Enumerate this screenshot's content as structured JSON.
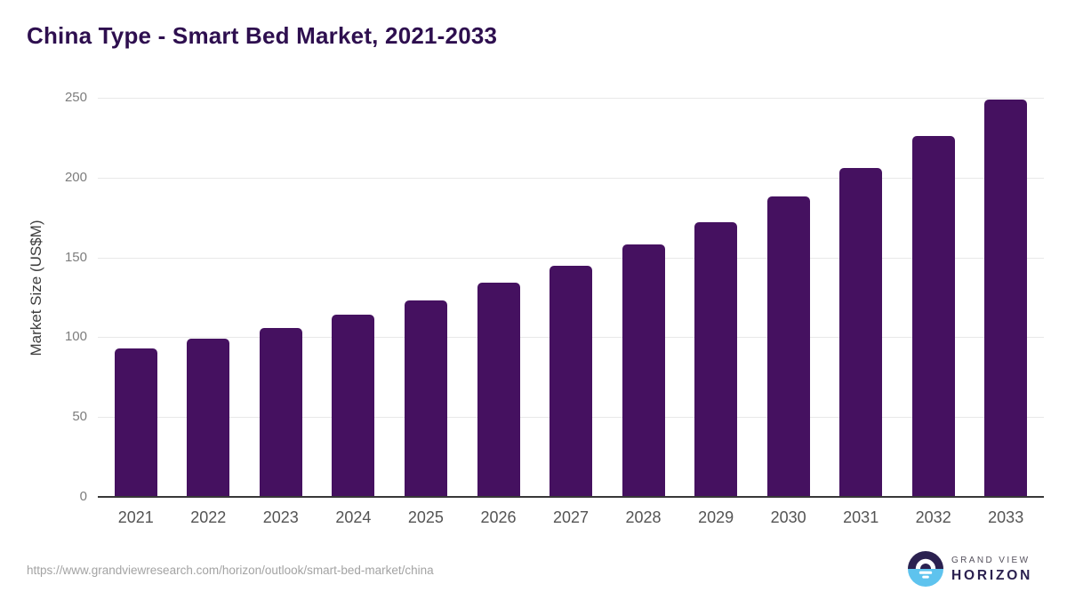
{
  "footer": {
    "url": "https://www.grandviewresearch.com/horizon/outlook/smart-bed-market/china"
  },
  "logo": {
    "line1": "GRAND VIEW",
    "line2": "HORIZON"
  },
  "colors": {
    "bar": "#451160",
    "title": "#2e0f4f",
    "grid": "#e8e8e8",
    "axis": "#383838",
    "y_tick": "#7d7d7d",
    "x_tick": "#545454",
    "y_label": "#3d3d3d",
    "url": "#a3a3a3",
    "logo_purple": "#2b2150",
    "logo_blue": "#5ec3ee",
    "logo_gray": "#54505c"
  },
  "chart_data": {
    "type": "bar",
    "title": "China Type - Smart Bed Market, 2021-2033",
    "xlabel": "",
    "ylabel": "Market Size (US$M)",
    "categories": [
      "2021",
      "2022",
      "2023",
      "2024",
      "2025",
      "2026",
      "2027",
      "2028",
      "2029",
      "2030",
      "2031",
      "2032",
      "2033"
    ],
    "values": [
      93,
      99,
      106,
      114,
      123,
      134,
      145,
      158,
      172,
      188,
      206,
      226,
      249
    ],
    "ylim": [
      0,
      250
    ],
    "yticks": [
      0,
      50,
      100,
      150,
      200,
      250
    ],
    "grid": true,
    "legend": false,
    "bar_color": "#451160"
  }
}
